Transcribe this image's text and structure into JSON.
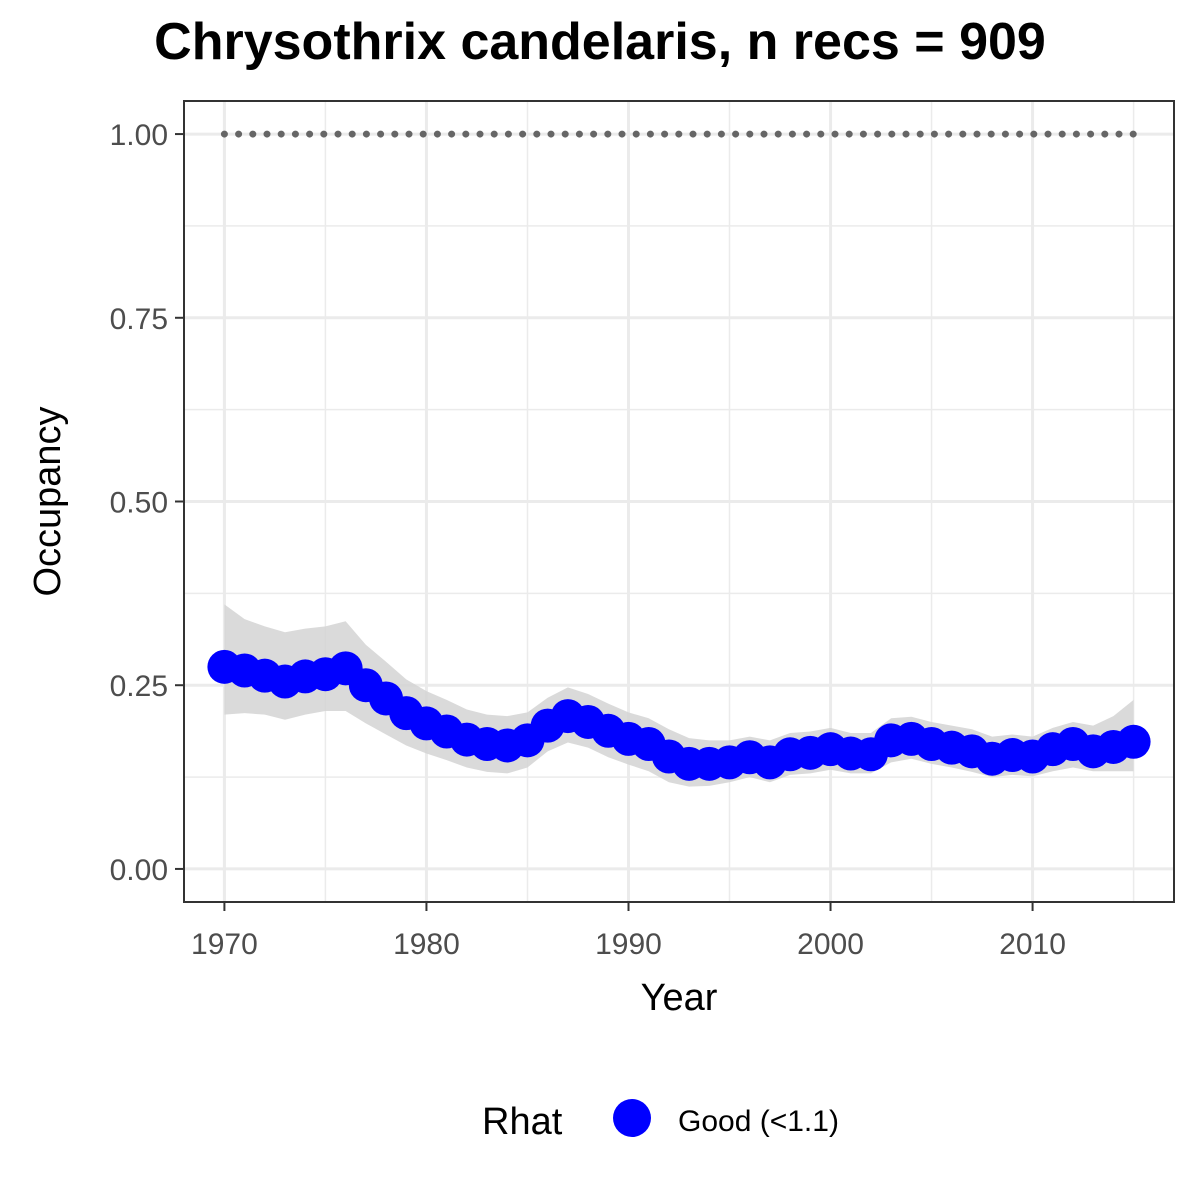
{
  "chart_data": {
    "type": "line",
    "title": "Chrysothrix candelaris, n recs = 909",
    "xlabel": "Year",
    "ylabel": "Occupancy",
    "xlim": [
      1968,
      2017
    ],
    "ylim": [
      -0.045,
      1.045
    ],
    "x_ticks": [
      1970,
      1980,
      1990,
      2000,
      2010
    ],
    "x_tick_labels": [
      "1970",
      "1980",
      "1990",
      "2000",
      "2010"
    ],
    "y_ticks": [
      0,
      0.25,
      0.5,
      0.75,
      1.0
    ],
    "y_tick_labels": [
      "0.00",
      "0.25",
      "0.50",
      "0.75",
      "1.00"
    ],
    "grid": true,
    "legend_position": "bottom",
    "legend": {
      "title": "Rhat",
      "entries": [
        {
          "label": "Good (<1.1)",
          "color": "#0000ff"
        }
      ]
    },
    "colors": {
      "points": "#0000ff",
      "ribbon": "#d3d3d3",
      "reference": "#666666"
    },
    "series": [
      {
        "name": "Good (<1.1)",
        "x": [
          1970,
          1971,
          1972,
          1973,
          1974,
          1975,
          1976,
          1977,
          1978,
          1979,
          1980,
          1981,
          1982,
          1983,
          1984,
          1985,
          1986,
          1987,
          1988,
          1989,
          1990,
          1991,
          1992,
          1993,
          1994,
          1995,
          1996,
          1997,
          1998,
          1999,
          2000,
          2001,
          2002,
          2003,
          2004,
          2005,
          2006,
          2007,
          2008,
          2009,
          2010,
          2011,
          2012,
          2013,
          2014,
          2015
        ],
        "y": [
          0.275,
          0.27,
          0.263,
          0.255,
          0.262,
          0.265,
          0.273,
          0.25,
          0.232,
          0.212,
          0.198,
          0.187,
          0.176,
          0.17,
          0.168,
          0.175,
          0.195,
          0.208,
          0.2,
          0.188,
          0.177,
          0.17,
          0.153,
          0.143,
          0.143,
          0.145,
          0.152,
          0.145,
          0.156,
          0.158,
          0.163,
          0.157,
          0.156,
          0.175,
          0.177,
          0.17,
          0.165,
          0.16,
          0.15,
          0.155,
          0.153,
          0.163,
          0.17,
          0.16,
          0.166,
          0.173
        ],
        "lower": [
          0.21,
          0.212,
          0.21,
          0.203,
          0.21,
          0.215,
          0.215,
          0.198,
          0.183,
          0.168,
          0.157,
          0.148,
          0.138,
          0.132,
          0.13,
          0.138,
          0.16,
          0.172,
          0.165,
          0.152,
          0.142,
          0.133,
          0.118,
          0.112,
          0.113,
          0.118,
          0.125,
          0.118,
          0.128,
          0.13,
          0.135,
          0.13,
          0.13,
          0.145,
          0.15,
          0.143,
          0.138,
          0.132,
          0.125,
          0.128,
          0.126,
          0.133,
          0.138,
          0.133,
          0.133,
          0.133
        ],
        "upper": [
          0.36,
          0.34,
          0.33,
          0.322,
          0.327,
          0.33,
          0.337,
          0.305,
          0.282,
          0.258,
          0.242,
          0.23,
          0.217,
          0.21,
          0.208,
          0.213,
          0.233,
          0.247,
          0.238,
          0.225,
          0.213,
          0.205,
          0.19,
          0.178,
          0.175,
          0.175,
          0.18,
          0.175,
          0.185,
          0.187,
          0.192,
          0.185,
          0.185,
          0.205,
          0.207,
          0.2,
          0.195,
          0.19,
          0.18,
          0.183,
          0.18,
          0.192,
          0.2,
          0.195,
          0.208,
          0.23
        ]
      }
    ],
    "reference_line": {
      "x_start": 1970,
      "x_end": 2015,
      "y": 1.0
    }
  }
}
